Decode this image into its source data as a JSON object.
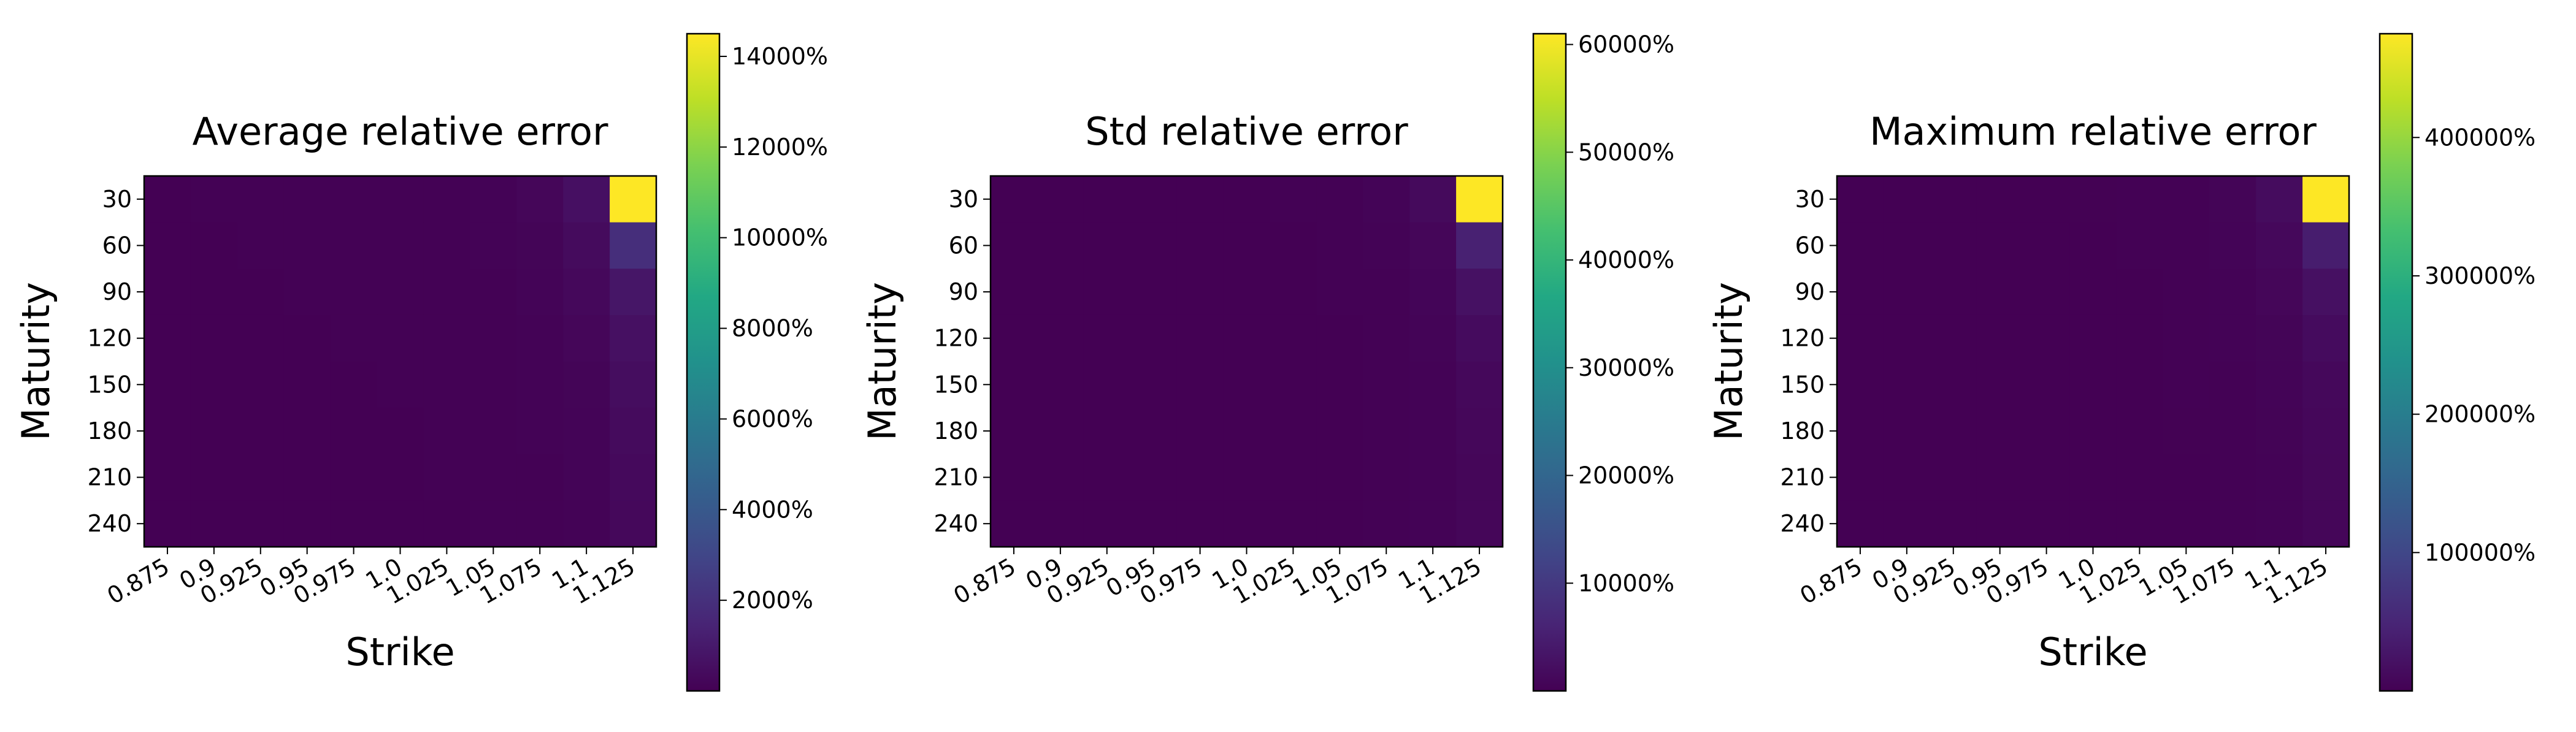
{
  "chart_data": [
    {
      "type": "heatmap",
      "title": "Average relative error",
      "xlabel": "Strike",
      "ylabel": "Maturity",
      "x_categories": [
        "0.875",
        "0.9",
        "0.925",
        "0.95",
        "0.975",
        "1.0",
        "1.025",
        "1.05",
        "1.075",
        "1.1",
        "1.125"
      ],
      "y_categories": [
        "30",
        "60",
        "90",
        "120",
        "150",
        "180",
        "210",
        "240"
      ],
      "colormap": "viridis",
      "vmin": 0,
      "vmax": 14500,
      "colorbar_ticks": [
        2000,
        4000,
        6000,
        8000,
        10000,
        12000,
        14000
      ],
      "colorbar_tick_labels": [
        "2000%",
        "4000%",
        "6000%",
        "8000%",
        "10000%",
        "12000%",
        "14000%"
      ],
      "values": [
        [
          20,
          25,
          30,
          35,
          40,
          50,
          60,
          80,
          200,
          600,
          14500
        ],
        [
          15,
          20,
          25,
          30,
          35,
          40,
          50,
          70,
          150,
          400,
          1900
        ],
        [
          15,
          18,
          20,
          25,
          30,
          35,
          40,
          60,
          120,
          300,
          850
        ],
        [
          12,
          15,
          18,
          20,
          25,
          30,
          35,
          50,
          100,
          200,
          620
        ],
        [
          10,
          12,
          15,
          18,
          20,
          25,
          30,
          40,
          80,
          150,
          480
        ],
        [
          10,
          12,
          14,
          16,
          18,
          20,
          25,
          35,
          70,
          120,
          400
        ],
        [
          8,
          10,
          12,
          14,
          16,
          18,
          22,
          30,
          60,
          110,
          350
        ],
        [
          8,
          10,
          12,
          14,
          15,
          18,
          20,
          28,
          55,
          100,
          300
        ]
      ]
    },
    {
      "type": "heatmap",
      "title": "Std relative error",
      "xlabel": "",
      "ylabel": "Maturity",
      "x_categories": [
        "0.875",
        "0.9",
        "0.925",
        "0.95",
        "0.975",
        "1.0",
        "1.025",
        "1.05",
        "1.075",
        "1.1",
        "1.125"
      ],
      "y_categories": [
        "30",
        "60",
        "90",
        "120",
        "150",
        "180",
        "210",
        "240"
      ],
      "colormap": "viridis",
      "vmin": 0,
      "vmax": 61000,
      "colorbar_ticks": [
        10000,
        20000,
        30000,
        40000,
        50000,
        60000
      ],
      "colorbar_tick_labels": [
        "10000%",
        "20000%",
        "30000%",
        "40000%",
        "50000%",
        "60000%"
      ],
      "values": [
        [
          30,
          35,
          40,
          50,
          60,
          80,
          100,
          150,
          500,
          1500,
          61000
        ],
        [
          25,
          30,
          35,
          40,
          50,
          60,
          80,
          120,
          300,
          900,
          5500
        ],
        [
          20,
          25,
          30,
          35,
          40,
          50,
          60,
          100,
          250,
          700,
          2800
        ],
        [
          18,
          22,
          25,
          30,
          35,
          40,
          50,
          80,
          200,
          500,
          1800
        ],
        [
          15,
          18,
          20,
          25,
          30,
          35,
          45,
          70,
          150,
          400,
          1300
        ],
        [
          15,
          18,
          20,
          22,
          25,
          30,
          40,
          60,
          130,
          350,
          1100
        ],
        [
          12,
          15,
          18,
          20,
          22,
          28,
          35,
          55,
          120,
          300,
          950
        ],
        [
          12,
          14,
          16,
          18,
          20,
          25,
          30,
          50,
          110,
          280,
          850
        ]
      ]
    },
    {
      "type": "heatmap",
      "title": "Maximum relative error",
      "xlabel": "Strike",
      "ylabel": "Maturity",
      "x_categories": [
        "0.875",
        "0.9",
        "0.925",
        "0.95",
        "0.975",
        "1.0",
        "1.025",
        "1.05",
        "1.075",
        "1.1",
        "1.125"
      ],
      "y_categories": [
        "30",
        "60",
        "90",
        "120",
        "150",
        "180",
        "210",
        "240"
      ],
      "colormap": "viridis",
      "vmin": 0,
      "vmax": 475000,
      "colorbar_ticks": [
        100000,
        200000,
        300000,
        400000
      ],
      "colorbar_tick_labels": [
        "100000%",
        "200000%",
        "300000%",
        "400000%"
      ],
      "values": [
        [
          200,
          250,
          300,
          400,
          500,
          700,
          1000,
          2000,
          5000,
          15000,
          475000
        ],
        [
          150,
          200,
          250,
          300,
          400,
          500,
          800,
          1500,
          4000,
          10000,
          38000
        ],
        [
          120,
          150,
          200,
          250,
          300,
          400,
          600,
          1200,
          3000,
          7000,
          20000
        ],
        [
          100,
          120,
          150,
          200,
          250,
          300,
          500,
          1000,
          2500,
          5000,
          14000
        ],
        [
          90,
          110,
          130,
          170,
          200,
          250,
          400,
          800,
          2000,
          4000,
          10000
        ],
        [
          80,
          100,
          120,
          150,
          180,
          220,
          350,
          700,
          1800,
          3500,
          8500
        ],
        [
          70,
          90,
          110,
          130,
          160,
          200,
          300,
          600,
          1500,
          3000,
          7500
        ],
        [
          60,
          80,
          100,
          120,
          150,
          180,
          280,
          550,
          1400,
          2800,
          6500
        ]
      ]
    }
  ]
}
